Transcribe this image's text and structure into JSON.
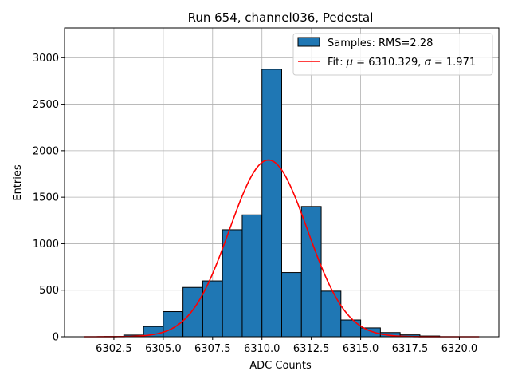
{
  "chart_data": {
    "type": "bar",
    "title": "Run 654, channel036, Pedestal",
    "xlabel": "ADC Counts",
    "ylabel": "Entries",
    "xlim": [
      6300.0,
      6322.0
    ],
    "ylim": [
      0,
      3320
    ],
    "x_ticks": [
      6302.5,
      6305.0,
      6307.5,
      6310.0,
      6312.5,
      6315.0,
      6317.5,
      6320.0
    ],
    "x_tick_labels": [
      "6302.5",
      "6305.0",
      "6307.5",
      "6310.0",
      "6312.5",
      "6315.0",
      "6317.5",
      "6320.0"
    ],
    "y_ticks": [
      0,
      500,
      1000,
      1500,
      2000,
      2500,
      3000
    ],
    "y_tick_labels": [
      "0",
      "500",
      "1000",
      "1500",
      "2000",
      "2500",
      "3000"
    ],
    "grid": true,
    "legend_position": "top-right",
    "histogram": {
      "name": "Samples: RMS=2.28",
      "color": "#1f77b4",
      "edge_color": "#000000",
      "bin_edges": [
        6302,
        6303,
        6304,
        6305,
        6306,
        6307,
        6308,
        6309,
        6310,
        6311,
        6312,
        6313,
        6314,
        6315,
        6316,
        6317,
        6318,
        6319
      ],
      "counts": [
        2,
        18,
        110,
        270,
        530,
        600,
        1150,
        1310,
        2875,
        690,
        1400,
        490,
        180,
        95,
        45,
        20,
        8
      ]
    },
    "fit": {
      "name": "Fit: μ = 6310.329, σ = 1.971",
      "label_parts": [
        "Fit: ",
        "μ",
        " = 6310.329, ",
        "σ",
        " = 1.971"
      ],
      "color": "#ff0000",
      "mu": 6310.329,
      "sigma": 1.971,
      "amplitude": 1900,
      "x_range": [
        6301,
        6321
      ]
    }
  }
}
